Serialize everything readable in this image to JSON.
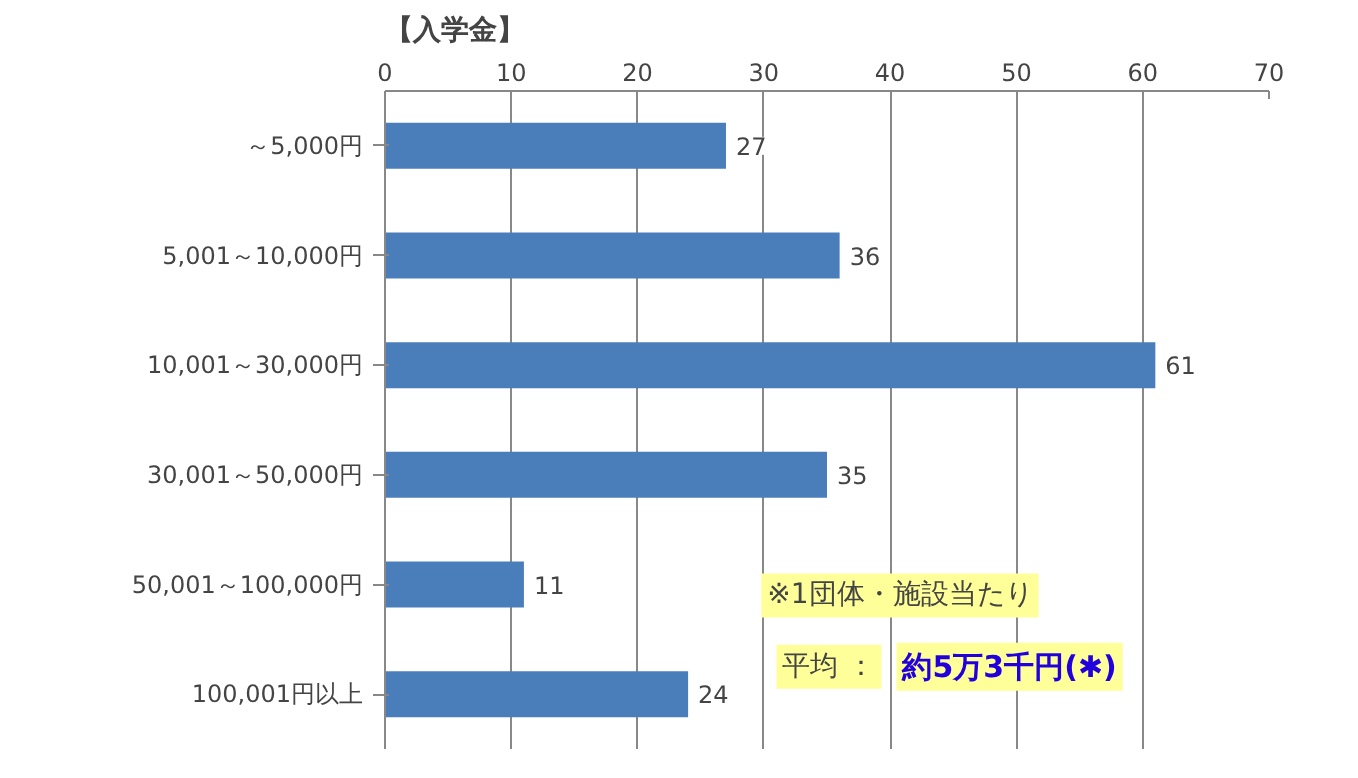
{
  "chart_data": {
    "type": "bar",
    "orientation": "horizontal",
    "title": "【入学金】",
    "categories": [
      "～5,000円",
      "5,001～10,000円",
      "10,001～30,000円",
      "30,001～50,000円",
      "50,001～100,000円",
      "100,001円以上"
    ],
    "values": [
      27,
      36,
      61,
      35,
      11,
      24
    ],
    "color": "#4a7ebb",
    "xlim": [
      0,
      70
    ],
    "xticks": [
      0,
      10,
      20,
      30,
      40,
      50,
      60,
      70
    ],
    "grid": "x",
    "data_labels": true,
    "annotations": [
      "※1団体・施設当たり",
      "平均 ：",
      "約5万3千円(✱)"
    ]
  }
}
